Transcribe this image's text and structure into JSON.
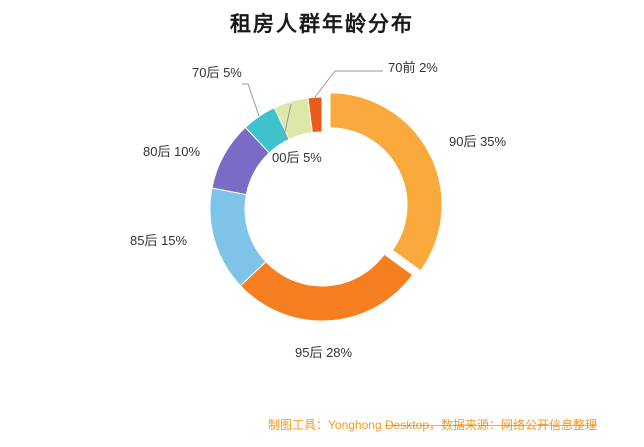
{
  "title": "租房人群年龄分布",
  "chart_data": {
    "type": "pie",
    "subtype": "donut",
    "title": "租房人群年龄分布",
    "unit": "%",
    "direction": "clockwise",
    "start_angle_deg": 0,
    "legend": "none",
    "slices": [
      {
        "name": "90后",
        "value": 35,
        "label": "90后 35%",
        "color": "#FAA93C",
        "exploded": true
      },
      {
        "name": "95后",
        "value": 28,
        "label": "95后 28%",
        "color": "#F57E20",
        "exploded": false
      },
      {
        "name": "85后",
        "value": 15,
        "label": "85后 15%",
        "color": "#7EC4E8",
        "exploded": false
      },
      {
        "name": "80后",
        "value": 10,
        "label": "80后 10%",
        "color": "#7A6BC7",
        "exploded": false
      },
      {
        "name": "70后",
        "value": 5,
        "label": "70后 5%",
        "color": "#3EC2CC",
        "exploded": false
      },
      {
        "name": "00后",
        "value": 5,
        "label": "00后 5%",
        "color": "#DFE7A8",
        "exploded": false
      },
      {
        "name": "70前",
        "value": 2,
        "label": "70前 2%",
        "color": "#EB5B1E",
        "exploded": false
      }
    ]
  },
  "footer": {
    "segments": [
      {
        "text": "制图工具：Yonghong "
      },
      {
        "text": "Desktop，数据来源："
      },
      {
        "text": "网络公开信息整理"
      }
    ],
    "color": "#F59A23"
  }
}
